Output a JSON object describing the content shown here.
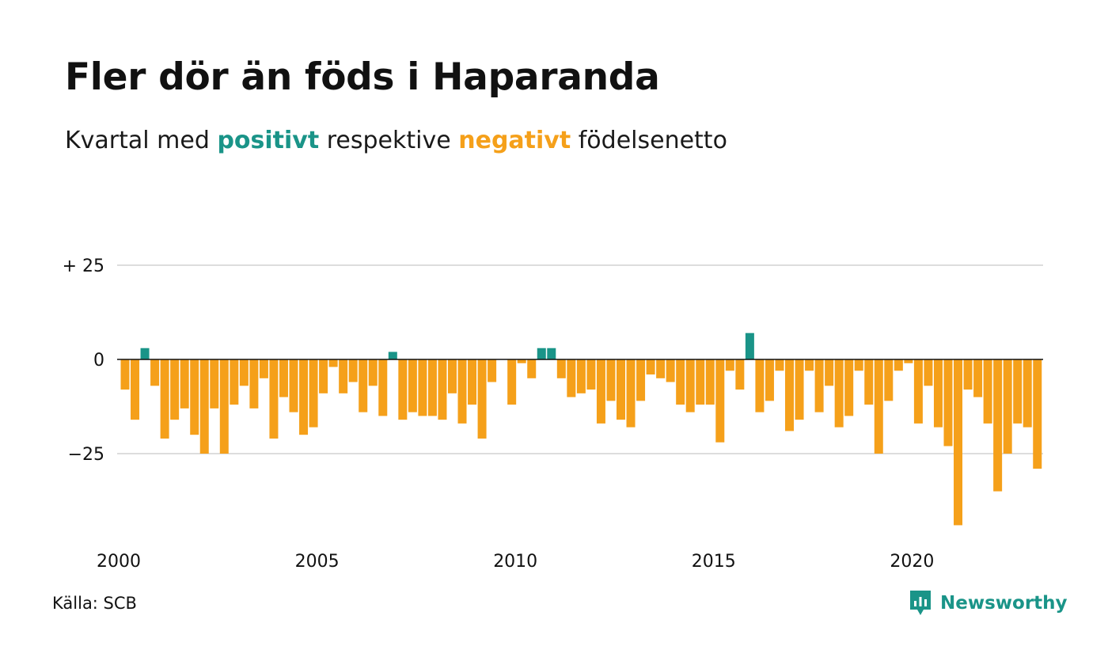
{
  "title": "Fler dör än föds i Haparanda",
  "subtitle": {
    "prefix": "Kvartal med",
    "positive": "positivt",
    "middle": "respektive",
    "negative": "negativt",
    "suffix": "födelsenetto"
  },
  "source": "Källa: SCB",
  "brand": {
    "name": "Newsworthy",
    "icon": "newsworthy-logo-icon"
  },
  "colors": {
    "positive": "#1a9488",
    "negative": "#f5a01a",
    "grid": "#dddddd",
    "zero": "#111111"
  },
  "chart_data": {
    "type": "bar",
    "title": "Fler dör än föds i Haparanda",
    "subtitle": "Kvartal med positivt respektive negativt födelsenetto",
    "ylim": [
      -45,
      25
    ],
    "yticks": [
      25,
      0,
      -25
    ],
    "ytick_labels": [
      "+ 25",
      "0",
      "−25"
    ],
    "xticks": [
      2000,
      2005,
      2010,
      2015,
      2020
    ],
    "xtick_labels": [
      "2000",
      "2005",
      "2010",
      "2015",
      "2020"
    ],
    "grid": true,
    "series": [
      {
        "name": "Födelsenetto",
        "start": "2000 Q1",
        "frequency": "quarter",
        "values": [
          -8,
          -16,
          3,
          -7,
          -21,
          -16,
          -13,
          -20,
          -25,
          -13,
          -25,
          -12,
          -7,
          -13,
          -5,
          -21,
          -10,
          -14,
          -20,
          -18,
          -9,
          -2,
          -9,
          -6,
          -14,
          -7,
          -15,
          2,
          -16,
          -14,
          -15,
          -15,
          -16,
          -9,
          -17,
          -12,
          -21,
          -6,
          0,
          -12,
          -1,
          -5,
          3,
          3,
          -5,
          -10,
          -9,
          -8,
          -17,
          -11,
          -16,
          -18,
          -11,
          -4,
          -5,
          -6,
          -12,
          -14,
          -12,
          -12,
          -22,
          -3,
          -8,
          7,
          -14,
          -11,
          -3,
          -19,
          -16,
          -3,
          -14,
          -7,
          -18,
          -15,
          -3,
          -12,
          -25,
          -11,
          -3,
          -1,
          -17,
          -7,
          -18,
          -23,
          -44,
          -8,
          -10,
          -17,
          -35,
          -25,
          -17,
          -18,
          -29
        ]
      }
    ]
  }
}
